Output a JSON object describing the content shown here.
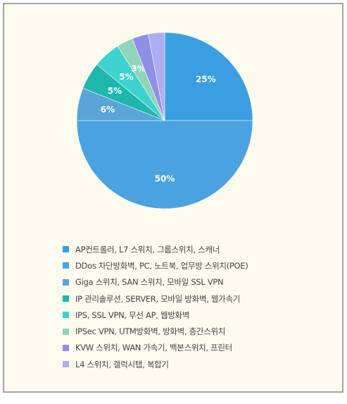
{
  "chart_data": {
    "type": "pie",
    "title": "",
    "slices": [
      {
        "label": "AP컨트롤러, L7 스위치, 그룹스위치, 스캐너",
        "value": 25,
        "value_label": "25%",
        "color": "#3a9ee0"
      },
      {
        "label": "DDos 차단방화벽, PC, 노트북, 업무방 스위치(POE)",
        "value": 50,
        "value_label": "50%",
        "color": "#4aa3e0"
      },
      {
        "label": "Giga 스위치, SAN 스위치, 모바일 SSL VPN",
        "value": 6,
        "value_label": "6%",
        "color": "#59a5d6"
      },
      {
        "label": "IP 관리솔루션, SERVER, 모바일 방화벽, 웹가속기",
        "value": 5,
        "value_label": "5%",
        "color": "#1fb6ac"
      },
      {
        "label": "IPS, SSL VPN, 무선 AP, 웹방화벽",
        "value": 5,
        "value_label": "5%",
        "color": "#3dd1cf"
      },
      {
        "label": "IPSec VPN, UTM방화벽, 방화벽, 층간스위치",
        "value": 3,
        "value_label": "3%",
        "color": "#8fd6b8"
      },
      {
        "label": "KVW 스위치, WAN 가속기, 백본스위치, 프린터",
        "value": 3,
        "value_label": "",
        "color": "#8f8fe8"
      },
      {
        "label": "L4 스위치, 갤럭시탭, 복합기",
        "value": 3,
        "value_label": "",
        "color": "#aeadf3"
      }
    ],
    "legend_position": "bottom",
    "start_angle_deg": -90,
    "direction": "clockwise"
  }
}
